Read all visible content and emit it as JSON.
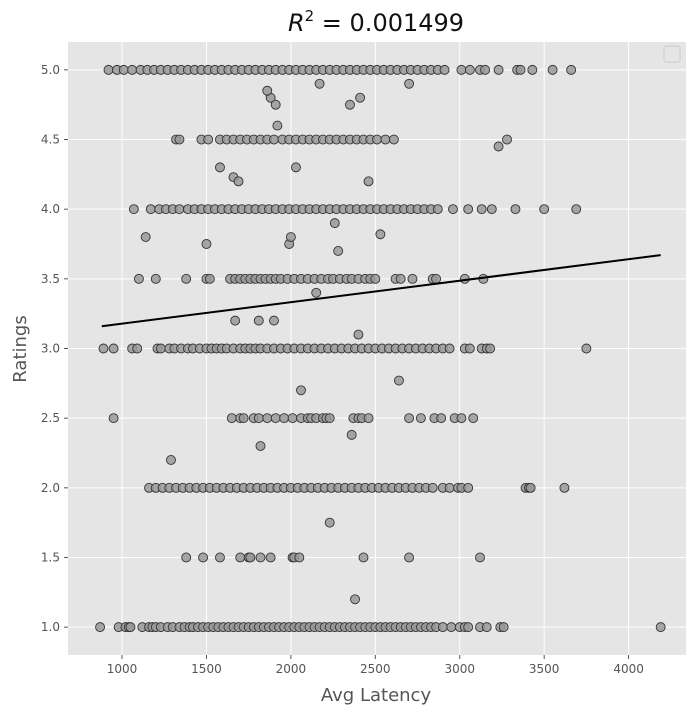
{
  "chart_data": {
    "type": "scatter",
    "title": "R^2 = 0.001499",
    "title_parts": {
      "var": "R",
      "exp": "2",
      "rest": " = 0.001499"
    },
    "xlabel": "Avg Latency",
    "ylabel": "Ratings",
    "xlim": [
      680,
      4340
    ],
    "ylim": [
      0.8,
      5.2
    ],
    "xticks": [
      1000,
      1500,
      2000,
      2500,
      3000,
      3500,
      4000
    ],
    "yticks": [
      1.0,
      1.5,
      2.0,
      2.5,
      3.0,
      3.5,
      4.0,
      4.5,
      5.0
    ],
    "grid": true,
    "legend": "top-right (empty)",
    "colors": {
      "background": "#e5e5e5",
      "point_fill": "#999999",
      "point_edge": "#333333",
      "line": "#000000",
      "grid": "#ffffff"
    },
    "regression_line": {
      "x": [
        880,
        4190
      ],
      "y": [
        3.16,
        3.67
      ]
    },
    "points": [
      [
        870,
        1.0
      ],
      [
        980,
        1.0
      ],
      [
        1020,
        1.0
      ],
      [
        1040,
        1.0
      ],
      [
        1050,
        1.0
      ],
      [
        1120,
        1.0
      ],
      [
        1160,
        1.0
      ],
      [
        1180,
        1.0
      ],
      [
        1200,
        1.0
      ],
      [
        1230,
        1.0
      ],
      [
        1270,
        1.0
      ],
      [
        1300,
        1.0
      ],
      [
        1340,
        1.0
      ],
      [
        1370,
        1.0
      ],
      [
        1400,
        1.0
      ],
      [
        1420,
        1.0
      ],
      [
        1450,
        1.0
      ],
      [
        1480,
        1.0
      ],
      [
        1510,
        1.0
      ],
      [
        1540,
        1.0
      ],
      [
        1570,
        1.0
      ],
      [
        1600,
        1.0
      ],
      [
        1630,
        1.0
      ],
      [
        1660,
        1.0
      ],
      [
        1690,
        1.0
      ],
      [
        1720,
        1.0
      ],
      [
        1750,
        1.0
      ],
      [
        1780,
        1.0
      ],
      [
        1810,
        1.0
      ],
      [
        1840,
        1.0
      ],
      [
        1870,
        1.0
      ],
      [
        1900,
        1.0
      ],
      [
        1930,
        1.0
      ],
      [
        1960,
        1.0
      ],
      [
        1990,
        1.0
      ],
      [
        2020,
        1.0
      ],
      [
        2050,
        1.0
      ],
      [
        2080,
        1.0
      ],
      [
        2110,
        1.0
      ],
      [
        2140,
        1.0
      ],
      [
        2170,
        1.0
      ],
      [
        2200,
        1.0
      ],
      [
        2230,
        1.0
      ],
      [
        2260,
        1.0
      ],
      [
        2290,
        1.0
      ],
      [
        2320,
        1.0
      ],
      [
        2350,
        1.0
      ],
      [
        2380,
        1.0
      ],
      [
        2410,
        1.0
      ],
      [
        2440,
        1.0
      ],
      [
        2470,
        1.0
      ],
      [
        2500,
        1.0
      ],
      [
        2530,
        1.0
      ],
      [
        2560,
        1.0
      ],
      [
        2590,
        1.0
      ],
      [
        2620,
        1.0
      ],
      [
        2650,
        1.0
      ],
      [
        2680,
        1.0
      ],
      [
        2710,
        1.0
      ],
      [
        2740,
        1.0
      ],
      [
        2770,
        1.0
      ],
      [
        2800,
        1.0
      ],
      [
        2830,
        1.0
      ],
      [
        2860,
        1.0
      ],
      [
        2900,
        1.0
      ],
      [
        2950,
        1.0
      ],
      [
        3000,
        1.0
      ],
      [
        3030,
        1.0
      ],
      [
        3050,
        1.0
      ],
      [
        3120,
        1.0
      ],
      [
        3160,
        1.0
      ],
      [
        3240,
        1.0
      ],
      [
        3260,
        1.0
      ],
      [
        4190,
        1.0
      ],
      [
        2380,
        1.2
      ],
      [
        1380,
        1.5
      ],
      [
        1480,
        1.5
      ],
      [
        1580,
        1.5
      ],
      [
        1700,
        1.5
      ],
      [
        1750,
        1.5
      ],
      [
        1760,
        1.5
      ],
      [
        1820,
        1.5
      ],
      [
        1880,
        1.5
      ],
      [
        2010,
        1.5
      ],
      [
        2020,
        1.5
      ],
      [
        2050,
        1.5
      ],
      [
        2430,
        1.5
      ],
      [
        2700,
        1.5
      ],
      [
        3120,
        1.5
      ],
      [
        2230,
        1.75
      ],
      [
        1160,
        2.0
      ],
      [
        1200,
        2.0
      ],
      [
        1240,
        2.0
      ],
      [
        1280,
        2.0
      ],
      [
        1320,
        2.0
      ],
      [
        1360,
        2.0
      ],
      [
        1400,
        2.0
      ],
      [
        1440,
        2.0
      ],
      [
        1480,
        2.0
      ],
      [
        1520,
        2.0
      ],
      [
        1560,
        2.0
      ],
      [
        1600,
        2.0
      ],
      [
        1640,
        2.0
      ],
      [
        1680,
        2.0
      ],
      [
        1720,
        2.0
      ],
      [
        1760,
        2.0
      ],
      [
        1800,
        2.0
      ],
      [
        1840,
        2.0
      ],
      [
        1880,
        2.0
      ],
      [
        1920,
        2.0
      ],
      [
        1960,
        2.0
      ],
      [
        2000,
        2.0
      ],
      [
        2040,
        2.0
      ],
      [
        2080,
        2.0
      ],
      [
        2120,
        2.0
      ],
      [
        2160,
        2.0
      ],
      [
        2200,
        2.0
      ],
      [
        2240,
        2.0
      ],
      [
        2280,
        2.0
      ],
      [
        2320,
        2.0
      ],
      [
        2360,
        2.0
      ],
      [
        2400,
        2.0
      ],
      [
        2440,
        2.0
      ],
      [
        2480,
        2.0
      ],
      [
        2520,
        2.0
      ],
      [
        2560,
        2.0
      ],
      [
        2600,
        2.0
      ],
      [
        2640,
        2.0
      ],
      [
        2680,
        2.0
      ],
      [
        2720,
        2.0
      ],
      [
        2760,
        2.0
      ],
      [
        2800,
        2.0
      ],
      [
        2840,
        2.0
      ],
      [
        2900,
        2.0
      ],
      [
        2940,
        2.0
      ],
      [
        2990,
        2.0
      ],
      [
        3010,
        2.0
      ],
      [
        3050,
        2.0
      ],
      [
        3390,
        2.0
      ],
      [
        3410,
        2.0
      ],
      [
        3420,
        2.0
      ],
      [
        3620,
        2.0
      ],
      [
        1820,
        2.3
      ],
      [
        2360,
        2.38
      ],
      [
        1290,
        2.2
      ],
      [
        950,
        2.5
      ],
      [
        1650,
        2.5
      ],
      [
        1700,
        2.5
      ],
      [
        1720,
        2.5
      ],
      [
        1780,
        2.5
      ],
      [
        1810,
        2.5
      ],
      [
        1860,
        2.5
      ],
      [
        1910,
        2.5
      ],
      [
        1960,
        2.5
      ],
      [
        2010,
        2.5
      ],
      [
        2060,
        2.5
      ],
      [
        2100,
        2.5
      ],
      [
        2120,
        2.5
      ],
      [
        2150,
        2.5
      ],
      [
        2190,
        2.5
      ],
      [
        2210,
        2.5
      ],
      [
        2230,
        2.5
      ],
      [
        2370,
        2.5
      ],
      [
        2400,
        2.5
      ],
      [
        2420,
        2.5
      ],
      [
        2460,
        2.5
      ],
      [
        2700,
        2.5
      ],
      [
        2770,
        2.5
      ],
      [
        2850,
        2.5
      ],
      [
        2890,
        2.5
      ],
      [
        2970,
        2.5
      ],
      [
        3010,
        2.5
      ],
      [
        3080,
        2.5
      ],
      [
        2060,
        2.7
      ],
      [
        2640,
        2.77
      ],
      [
        890,
        3.0
      ],
      [
        950,
        3.0
      ],
      [
        1060,
        3.0
      ],
      [
        1090,
        3.0
      ],
      [
        1210,
        3.0
      ],
      [
        1230,
        3.0
      ],
      [
        1280,
        3.0
      ],
      [
        1310,
        3.0
      ],
      [
        1350,
        3.0
      ],
      [
        1390,
        3.0
      ],
      [
        1420,
        3.0
      ],
      [
        1460,
        3.0
      ],
      [
        1500,
        3.0
      ],
      [
        1530,
        3.0
      ],
      [
        1560,
        3.0
      ],
      [
        1590,
        3.0
      ],
      [
        1620,
        3.0
      ],
      [
        1660,
        3.0
      ],
      [
        1700,
        3.0
      ],
      [
        1730,
        3.0
      ],
      [
        1760,
        3.0
      ],
      [
        1790,
        3.0
      ],
      [
        1820,
        3.0
      ],
      [
        1860,
        3.0
      ],
      [
        1900,
        3.0
      ],
      [
        1940,
        3.0
      ],
      [
        1980,
        3.0
      ],
      [
        2020,
        3.0
      ],
      [
        2060,
        3.0
      ],
      [
        2100,
        3.0
      ],
      [
        2140,
        3.0
      ],
      [
        2180,
        3.0
      ],
      [
        2220,
        3.0
      ],
      [
        2260,
        3.0
      ],
      [
        2300,
        3.0
      ],
      [
        2340,
        3.0
      ],
      [
        2380,
        3.0
      ],
      [
        2420,
        3.0
      ],
      [
        2460,
        3.0
      ],
      [
        2500,
        3.0
      ],
      [
        2540,
        3.0
      ],
      [
        2580,
        3.0
      ],
      [
        2620,
        3.0
      ],
      [
        2660,
        3.0
      ],
      [
        2700,
        3.0
      ],
      [
        2740,
        3.0
      ],
      [
        2780,
        3.0
      ],
      [
        2820,
        3.0
      ],
      [
        2860,
        3.0
      ],
      [
        2900,
        3.0
      ],
      [
        2940,
        3.0
      ],
      [
        3030,
        3.0
      ],
      [
        3060,
        3.0
      ],
      [
        3130,
        3.0
      ],
      [
        3160,
        3.0
      ],
      [
        3180,
        3.0
      ],
      [
        3750,
        3.0
      ],
      [
        2400,
        3.1
      ],
      [
        1670,
        3.2
      ],
      [
        1810,
        3.2
      ],
      [
        1900,
        3.2
      ],
      [
        2150,
        3.4
      ],
      [
        1100,
        3.5
      ],
      [
        1200,
        3.5
      ],
      [
        1380,
        3.5
      ],
      [
        1500,
        3.5
      ],
      [
        1520,
        3.5
      ],
      [
        1640,
        3.5
      ],
      [
        1670,
        3.5
      ],
      [
        1700,
        3.5
      ],
      [
        1730,
        3.5
      ],
      [
        1760,
        3.5
      ],
      [
        1790,
        3.5
      ],
      [
        1820,
        3.5
      ],
      [
        1850,
        3.5
      ],
      [
        1880,
        3.5
      ],
      [
        1910,
        3.5
      ],
      [
        1940,
        3.5
      ],
      [
        1980,
        3.5
      ],
      [
        2020,
        3.5
      ],
      [
        2060,
        3.5
      ],
      [
        2100,
        3.5
      ],
      [
        2140,
        3.5
      ],
      [
        2180,
        3.5
      ],
      [
        2220,
        3.5
      ],
      [
        2250,
        3.5
      ],
      [
        2290,
        3.5
      ],
      [
        2330,
        3.5
      ],
      [
        2360,
        3.5
      ],
      [
        2400,
        3.5
      ],
      [
        2440,
        3.5
      ],
      [
        2470,
        3.5
      ],
      [
        2500,
        3.5
      ],
      [
        2620,
        3.5
      ],
      [
        2650,
        3.5
      ],
      [
        2720,
        3.5
      ],
      [
        2840,
        3.5
      ],
      [
        2860,
        3.5
      ],
      [
        3030,
        3.5
      ],
      [
        3140,
        3.5
      ],
      [
        2280,
        3.7
      ],
      [
        1500,
        3.75
      ],
      [
        1990,
        3.75
      ],
      [
        2000,
        3.8
      ],
      [
        1140,
        3.8
      ],
      [
        2530,
        3.82
      ],
      [
        2260,
        3.9
      ],
      [
        1070,
        4.0
      ],
      [
        1170,
        4.0
      ],
      [
        1220,
        4.0
      ],
      [
        1260,
        4.0
      ],
      [
        1300,
        4.0
      ],
      [
        1340,
        4.0
      ],
      [
        1390,
        4.0
      ],
      [
        1430,
        4.0
      ],
      [
        1470,
        4.0
      ],
      [
        1510,
        4.0
      ],
      [
        1550,
        4.0
      ],
      [
        1590,
        4.0
      ],
      [
        1630,
        4.0
      ],
      [
        1670,
        4.0
      ],
      [
        1710,
        4.0
      ],
      [
        1750,
        4.0
      ],
      [
        1790,
        4.0
      ],
      [
        1830,
        4.0
      ],
      [
        1870,
        4.0
      ],
      [
        1910,
        4.0
      ],
      [
        1950,
        4.0
      ],
      [
        1990,
        4.0
      ],
      [
        2030,
        4.0
      ],
      [
        2070,
        4.0
      ],
      [
        2110,
        4.0
      ],
      [
        2150,
        4.0
      ],
      [
        2190,
        4.0
      ],
      [
        2230,
        4.0
      ],
      [
        2270,
        4.0
      ],
      [
        2310,
        4.0
      ],
      [
        2350,
        4.0
      ],
      [
        2390,
        4.0
      ],
      [
        2430,
        4.0
      ],
      [
        2470,
        4.0
      ],
      [
        2510,
        4.0
      ],
      [
        2550,
        4.0
      ],
      [
        2590,
        4.0
      ],
      [
        2630,
        4.0
      ],
      [
        2670,
        4.0
      ],
      [
        2710,
        4.0
      ],
      [
        2750,
        4.0
      ],
      [
        2790,
        4.0
      ],
      [
        2830,
        4.0
      ],
      [
        2870,
        4.0
      ],
      [
        2960,
        4.0
      ],
      [
        3050,
        4.0
      ],
      [
        3130,
        4.0
      ],
      [
        3190,
        4.0
      ],
      [
        3330,
        4.0
      ],
      [
        3500,
        4.0
      ],
      [
        3690,
        4.0
      ],
      [
        1660,
        4.23
      ],
      [
        1690,
        4.2
      ],
      [
        2460,
        4.2
      ],
      [
        1580,
        4.3
      ],
      [
        2030,
        4.3
      ],
      [
        1320,
        4.5
      ],
      [
        1340,
        4.5
      ],
      [
        1470,
        4.5
      ],
      [
        1510,
        4.5
      ],
      [
        1580,
        4.5
      ],
      [
        1620,
        4.5
      ],
      [
        1660,
        4.5
      ],
      [
        1700,
        4.5
      ],
      [
        1740,
        4.5
      ],
      [
        1780,
        4.5
      ],
      [
        1820,
        4.5
      ],
      [
        1860,
        4.5
      ],
      [
        1900,
        4.5
      ],
      [
        1950,
        4.5
      ],
      [
        1990,
        4.5
      ],
      [
        2030,
        4.5
      ],
      [
        2070,
        4.5
      ],
      [
        2110,
        4.5
      ],
      [
        2150,
        4.5
      ],
      [
        2190,
        4.5
      ],
      [
        2230,
        4.5
      ],
      [
        2270,
        4.5
      ],
      [
        2310,
        4.5
      ],
      [
        2350,
        4.5
      ],
      [
        2390,
        4.5
      ],
      [
        2430,
        4.5
      ],
      [
        2470,
        4.5
      ],
      [
        2510,
        4.5
      ],
      [
        2560,
        4.5
      ],
      [
        2610,
        4.5
      ],
      [
        3280,
        4.5
      ],
      [
        3230,
        4.45
      ],
      [
        1920,
        4.6
      ],
      [
        1880,
        4.8
      ],
      [
        1910,
        4.75
      ],
      [
        1860,
        4.85
      ],
      [
        2350,
        4.75
      ],
      [
        2410,
        4.8
      ],
      [
        2170,
        4.9
      ],
      [
        2700,
        4.9
      ],
      [
        920,
        5.0
      ],
      [
        970,
        5.0
      ],
      [
        1010,
        5.0
      ],
      [
        1060,
        5.0
      ],
      [
        1110,
        5.0
      ],
      [
        1150,
        5.0
      ],
      [
        1190,
        5.0
      ],
      [
        1230,
        5.0
      ],
      [
        1270,
        5.0
      ],
      [
        1310,
        5.0
      ],
      [
        1350,
        5.0
      ],
      [
        1390,
        5.0
      ],
      [
        1430,
        5.0
      ],
      [
        1470,
        5.0
      ],
      [
        1510,
        5.0
      ],
      [
        1550,
        5.0
      ],
      [
        1590,
        5.0
      ],
      [
        1630,
        5.0
      ],
      [
        1670,
        5.0
      ],
      [
        1710,
        5.0
      ],
      [
        1750,
        5.0
      ],
      [
        1790,
        5.0
      ],
      [
        1830,
        5.0
      ],
      [
        1870,
        5.0
      ],
      [
        1910,
        5.0
      ],
      [
        1950,
        5.0
      ],
      [
        1990,
        5.0
      ],
      [
        2030,
        5.0
      ],
      [
        2070,
        5.0
      ],
      [
        2110,
        5.0
      ],
      [
        2150,
        5.0
      ],
      [
        2190,
        5.0
      ],
      [
        2230,
        5.0
      ],
      [
        2270,
        5.0
      ],
      [
        2310,
        5.0
      ],
      [
        2350,
        5.0
      ],
      [
        2390,
        5.0
      ],
      [
        2430,
        5.0
      ],
      [
        2470,
        5.0
      ],
      [
        2510,
        5.0
      ],
      [
        2550,
        5.0
      ],
      [
        2590,
        5.0
      ],
      [
        2630,
        5.0
      ],
      [
        2670,
        5.0
      ],
      [
        2710,
        5.0
      ],
      [
        2750,
        5.0
      ],
      [
        2790,
        5.0
      ],
      [
        2830,
        5.0
      ],
      [
        2870,
        5.0
      ],
      [
        2910,
        5.0
      ],
      [
        3010,
        5.0
      ],
      [
        3060,
        5.0
      ],
      [
        3120,
        5.0
      ],
      [
        3150,
        5.0
      ],
      [
        3230,
        5.0
      ],
      [
        3340,
        5.0
      ],
      [
        3360,
        5.0
      ],
      [
        3430,
        5.0
      ],
      [
        3550,
        5.0
      ],
      [
        3660,
        5.0
      ]
    ]
  }
}
